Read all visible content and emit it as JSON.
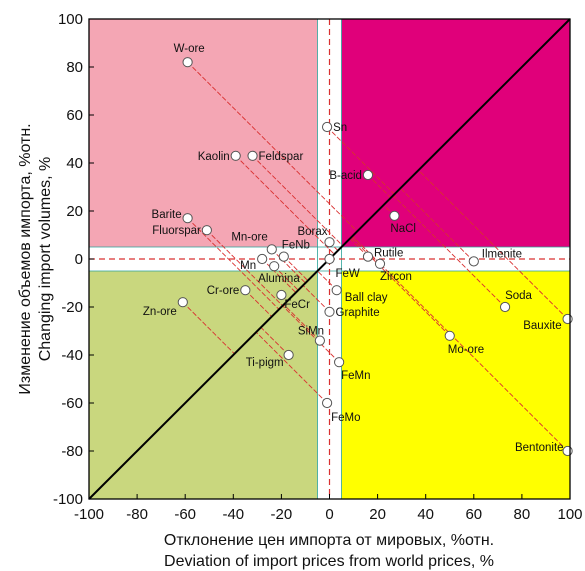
{
  "chart_data": {
    "type": "scatter",
    "xlabel": [
      "Отклонение цен импорта от мировых, %отн.",
      "Deviation of import prices from world prices, %"
    ],
    "ylabel": [
      "Изменение объемов импорта, %отн.",
      "Changing import volumes, %"
    ],
    "xlim": [
      -100,
      100
    ],
    "ylim": [
      -100,
      100
    ],
    "xticks": [
      -100,
      -80,
      -60,
      -40,
      -20,
      0,
      20,
      40,
      60,
      80,
      100
    ],
    "yticks": [
      -100,
      -80,
      -60,
      -40,
      -20,
      0,
      20,
      40,
      60,
      80,
      100
    ],
    "grid": false,
    "colors": {
      "top_left": "#f4a6b4",
      "top_right": "#e0007a",
      "bottom_left": "#c9d77e",
      "bottom_right": "#ffff00",
      "band": "#ffffff",
      "band_line": "#2aa198",
      "diagonal": "#000000",
      "connector": "#d93030",
      "point_fill": "#ffffff",
      "point_stroke": "#555555"
    },
    "points": [
      {
        "label": "W-ore",
        "x": -59,
        "y": 82
      },
      {
        "label": "Sn",
        "x": -1,
        "y": 55
      },
      {
        "label": "Kaolin",
        "x": -39,
        "y": 43
      },
      {
        "label": "Feldspar",
        "x": -32,
        "y": 43
      },
      {
        "label": "B-acid",
        "x": 16,
        "y": 35
      },
      {
        "label": "NaCl",
        "x": 27,
        "y": 18
      },
      {
        "label": "Barite",
        "x": -59,
        "y": 17
      },
      {
        "label": "Fluorspar",
        "x": -51,
        "y": 12
      },
      {
        "label": "Borax",
        "x": 0,
        "y": 7
      },
      {
        "label": "Mn-ore",
        "x": -24,
        "y": 4
      },
      {
        "label": "FeNb",
        "x": -19,
        "y": 1
      },
      {
        "label": "Mn",
        "x": -28,
        "y": 0
      },
      {
        "label": "Alumina",
        "x": -23,
        "y": -3
      },
      {
        "label": "Rutile",
        "x": 16,
        "y": 1
      },
      {
        "label": "Ilmenite",
        "x": 60,
        "y": -1
      },
      {
        "label": "FeW",
        "x": 0,
        "y": 0
      },
      {
        "label": "Zircon",
        "x": 21,
        "y": -2
      },
      {
        "label": "Ball clay",
        "x": 3,
        "y": -13
      },
      {
        "label": "Cr-ore",
        "x": -35,
        "y": -13
      },
      {
        "label": "FeCr",
        "x": -20,
        "y": -15
      },
      {
        "label": "Zn-ore",
        "x": -61,
        "y": -18
      },
      {
        "label": "Soda",
        "x": 73,
        "y": -20
      },
      {
        "label": "Graphite",
        "x": 0,
        "y": -22
      },
      {
        "label": "Bauxite",
        "x": 99,
        "y": -25
      },
      {
        "label": "SiMn",
        "x": -4,
        "y": -34
      },
      {
        "label": "Mo-ore",
        "x": 50,
        "y": -32
      },
      {
        "label": "Ti-pigm",
        "x": -17,
        "y": -40
      },
      {
        "label": "FeMn",
        "x": 4,
        "y": -43
      },
      {
        "label": "FeMo",
        "x": -1,
        "y": -60
      },
      {
        "label": "Bentonite",
        "x": 99,
        "y": -80
      }
    ]
  }
}
